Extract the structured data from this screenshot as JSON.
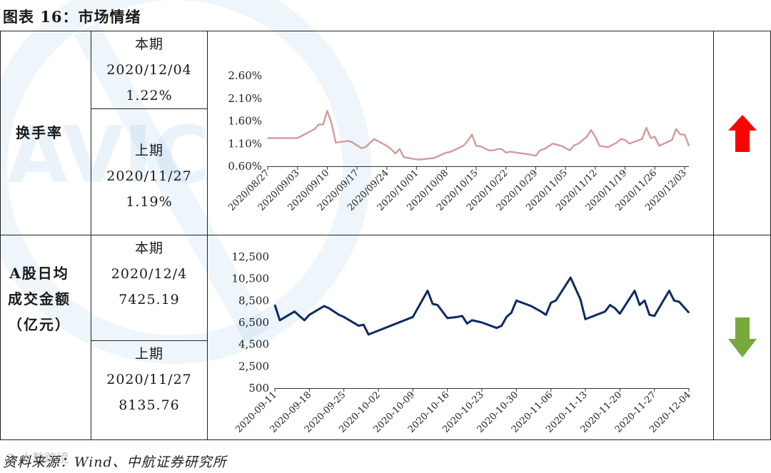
{
  "title": "图表 16：市场情绪",
  "rows": [
    {
      "name": "换手率",
      "current": {
        "label": "本期",
        "date": "2020/12/04",
        "value": "1.22%"
      },
      "previous": {
        "label": "上期",
        "date": "2020/11/27",
        "value": "1.19%"
      },
      "trend": "up",
      "trend_color": "#ff0000"
    },
    {
      "name_lines": [
        "A股日均",
        "成交金额",
        "（亿元）"
      ],
      "current": {
        "label": "本期",
        "date": "2020/12/4",
        "value": "7425.19"
      },
      "previous": {
        "label": "上期",
        "date": "2020/11/27",
        "value": "8135.76"
      },
      "trend": "down",
      "trend_color": "#77a83c"
    }
  ],
  "source": "资料来源：Wind、中航证券研究所",
  "watermark_text": "AVIC",
  "footer_watermark": "@ 大数跨境",
  "chart_data": [
    {
      "type": "line",
      "name": "turnover",
      "color": "#d39a9a",
      "y_ticks": [
        "0.60%",
        "1.10%",
        "1.60%",
        "2.10%",
        "2.60%"
      ],
      "ylim": [
        0.6,
        2.6
      ],
      "x_tick_labels": [
        "2020/08/27",
        "2020/09/03",
        "2020/09/10",
        "2020/09/17",
        "2020/09/24",
        "2020/10/01",
        "2020/10/08",
        "2020/10/15",
        "2020/10/22",
        "2020/10/29",
        "2020/11/05",
        "2020/11/12",
        "2020/11/19",
        "2020/11/26",
        "2020/12/03"
      ],
      "x": [
        "2020-08-27",
        "2020-09-03",
        "2020-09-07",
        "2020-09-08",
        "2020-09-09",
        "2020-09-10",
        "2020-09-11",
        "2020-09-12",
        "2020-09-15",
        "2020-09-16",
        "2020-09-18",
        "2020-09-19",
        "2020-09-21",
        "2020-09-24",
        "2020-09-25",
        "2020-09-26",
        "2020-09-27",
        "2020-09-28",
        "2020-10-01",
        "2020-10-02",
        "2020-10-05",
        "2020-10-08",
        "2020-10-09",
        "2020-10-12",
        "2020-10-13",
        "2020-10-14",
        "2020-10-15",
        "2020-10-16",
        "2020-10-18",
        "2020-10-19",
        "2020-10-20",
        "2020-10-21",
        "2020-10-22",
        "2020-10-23",
        "2020-10-26",
        "2020-10-28",
        "2020-10-29",
        "2020-10-30",
        "2020-10-31",
        "2020-11-02",
        "2020-11-04",
        "2020-11-05",
        "2020-11-06",
        "2020-11-07",
        "2020-11-08",
        "2020-11-10",
        "2020-11-11",
        "2020-11-12",
        "2020-11-13",
        "2020-11-15",
        "2020-11-17",
        "2020-11-18",
        "2020-11-19",
        "2020-11-20",
        "2020-11-23",
        "2020-11-24",
        "2020-11-25",
        "2020-11-26",
        "2020-11-27",
        "2020-11-30",
        "2020-12-01",
        "2020-12-02",
        "2020-12-03",
        "2020-12-04"
      ],
      "y": [
        1.22,
        1.22,
        1.42,
        1.52,
        1.52,
        1.82,
        1.55,
        1.12,
        1.16,
        1.12,
        1.0,
        1.02,
        1.2,
        1.05,
        0.98,
        0.88,
        0.98,
        0.8,
        0.75,
        0.75,
        0.78,
        0.9,
        0.92,
        1.05,
        1.16,
        1.3,
        1.05,
        1.04,
        0.95,
        0.95,
        0.98,
        0.98,
        0.9,
        0.92,
        0.88,
        0.85,
        0.83,
        0.95,
        0.98,
        1.1,
        1.05,
        1.0,
        0.95,
        1.06,
        1.1,
        1.25,
        1.4,
        1.25,
        1.05,
        1.02,
        1.12,
        1.2,
        1.18,
        1.1,
        1.2,
        1.45,
        1.22,
        1.25,
        1.05,
        1.18,
        1.42,
        1.3,
        1.3,
        1.05
      ]
    },
    {
      "type": "line",
      "name": "daily_turnover_amount",
      "color": "#0f2a63",
      "y_ticks": [
        "500",
        "2,500",
        "4,500",
        "6,500",
        "8,500",
        "10,500",
        "12,500"
      ],
      "ylim": [
        500,
        12500
      ],
      "x_tick_labels": [
        "2020-09-11",
        "2020-09-18",
        "2020-09-25",
        "2020-10-02",
        "2020-10-09",
        "2020-10-16",
        "2020-10-23",
        "2020-10-30",
        "2020-11-06",
        "2020-11-13",
        "2020-11-20",
        "2020-11-27",
        "2020-12-04"
      ],
      "x": [
        "2020-09-11",
        "2020-09-12",
        "2020-09-15",
        "2020-09-17",
        "2020-09-18",
        "2020-09-21",
        "2020-09-22",
        "2020-09-23",
        "2020-09-24",
        "2020-09-25",
        "2020-09-28",
        "2020-09-29",
        "2020-09-30",
        "2020-10-09",
        "2020-10-12",
        "2020-10-13",
        "2020-10-14",
        "2020-10-15",
        "2020-10-16",
        "2020-10-18",
        "2020-10-19",
        "2020-10-20",
        "2020-10-21",
        "2020-10-23",
        "2020-10-26",
        "2020-10-27",
        "2020-10-28",
        "2020-10-29",
        "2020-10-30",
        "2020-11-02",
        "2020-11-04",
        "2020-11-05",
        "2020-11-06",
        "2020-11-07",
        "2020-11-10",
        "2020-11-12",
        "2020-11-13",
        "2020-11-17",
        "2020-11-18",
        "2020-11-19",
        "2020-11-20",
        "2020-11-23",
        "2020-11-24",
        "2020-11-25",
        "2020-11-26",
        "2020-11-27",
        "2020-11-30",
        "2020-12-01",
        "2020-12-02",
        "2020-12-04"
      ],
      "y": [
        8100,
        6700,
        7500,
        6700,
        7200,
        8000,
        7800,
        7500,
        7200,
        7000,
        6200,
        6300,
        5400,
        7000,
        9400,
        8200,
        8100,
        7500,
        6900,
        7000,
        7100,
        6400,
        6700,
        6500,
        6000,
        6200,
        7000,
        7400,
        8500,
        8000,
        7500,
        7200,
        8300,
        8500,
        10600,
        8600,
        6800,
        7500,
        8100,
        7800,
        7300,
        9400,
        8100,
        8500,
        7200,
        7100,
        9400,
        8500,
        8400,
        7400
      ]
    }
  ]
}
